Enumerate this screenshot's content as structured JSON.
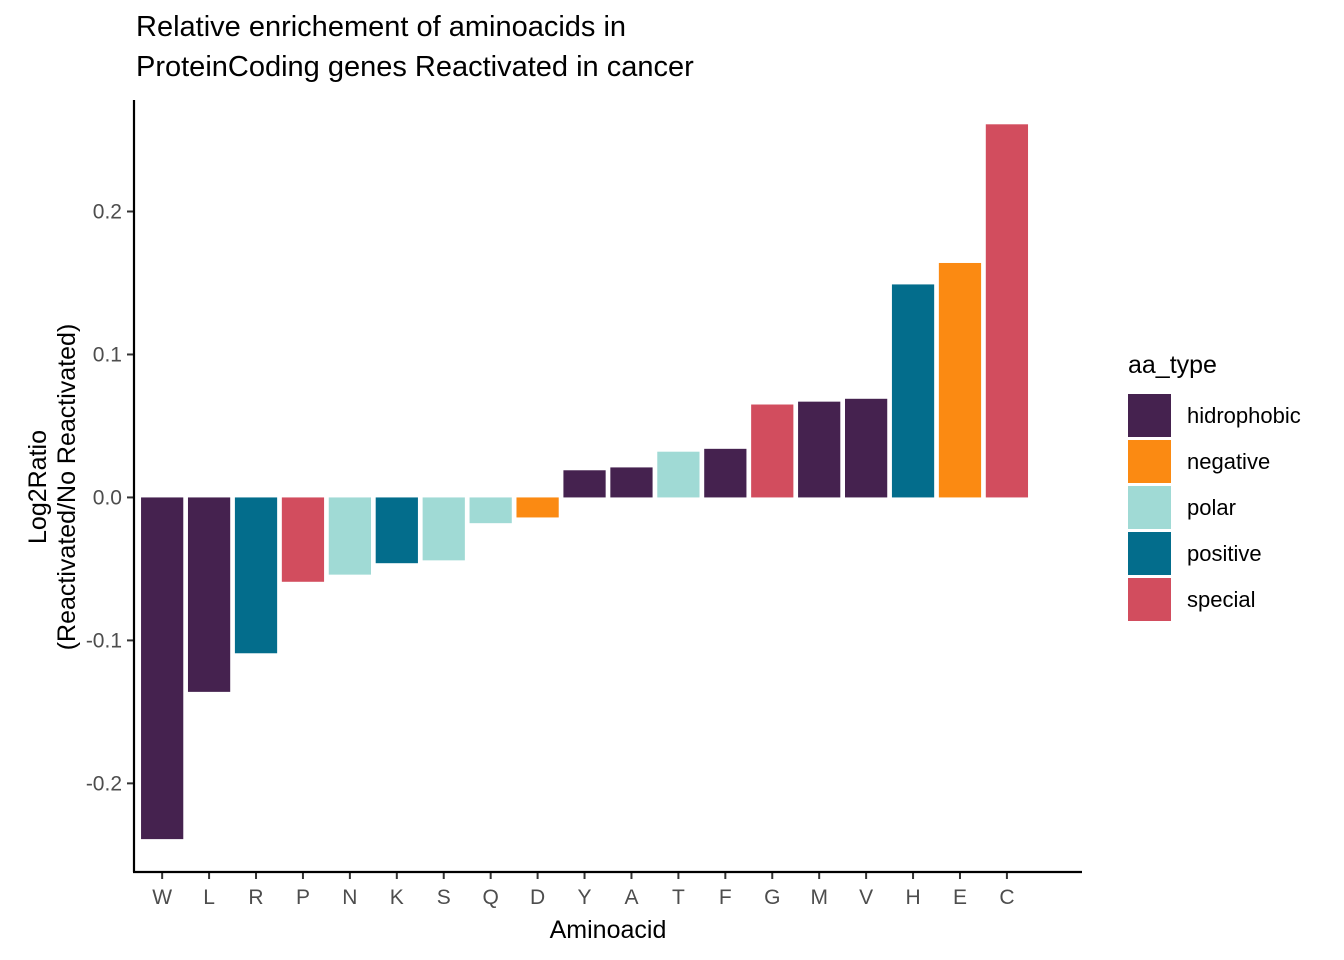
{
  "chart_data": {
    "type": "bar",
    "title": [
      "Relative enrichement of aminoacids in",
      "ProteinCoding genes Reactivated in cancer"
    ],
    "xlabel": "Aminoacid",
    "ylabel": [
      "Log2Ratio",
      "(Reactivated/No Reactivated)"
    ],
    "ylim": [
      -0.262,
      0.278
    ],
    "yticks": [
      -0.2,
      -0.1,
      0.0,
      0.1,
      0.2
    ],
    "ytick_labels": [
      "-0.2",
      "-0.1",
      "0.0",
      "0.1",
      "0.2"
    ],
    "grid": false,
    "legend": {
      "title": "aa_type",
      "placement": "right",
      "entries": [
        {
          "name": "hidrophobic",
          "color": "#45224f"
        },
        {
          "name": "negative",
          "color": "#fb8a12"
        },
        {
          "name": "polar",
          "color": "#a0dad5"
        },
        {
          "name": "positive",
          "color": "#036d8c"
        },
        {
          "name": "special",
          "color": "#d24d5e"
        }
      ]
    },
    "categories": [
      "W",
      "L",
      "R",
      "P",
      "N",
      "K",
      "S",
      "Q",
      "D",
      "Y",
      "A",
      "T",
      "F",
      "G",
      "M",
      "V",
      "H",
      "E",
      "C"
    ],
    "values": [
      -0.239,
      -0.136,
      -0.109,
      -0.059,
      -0.054,
      -0.046,
      -0.044,
      -0.018,
      -0.014,
      0.019,
      0.021,
      0.032,
      0.034,
      0.065,
      0.067,
      0.069,
      0.149,
      0.164,
      0.261
    ],
    "types": [
      "hidrophobic",
      "hidrophobic",
      "positive",
      "special",
      "polar",
      "positive",
      "polar",
      "polar",
      "negative",
      "hidrophobic",
      "hidrophobic",
      "polar",
      "hidrophobic",
      "special",
      "hidrophobic",
      "hidrophobic",
      "positive",
      "negative",
      "special"
    ]
  }
}
